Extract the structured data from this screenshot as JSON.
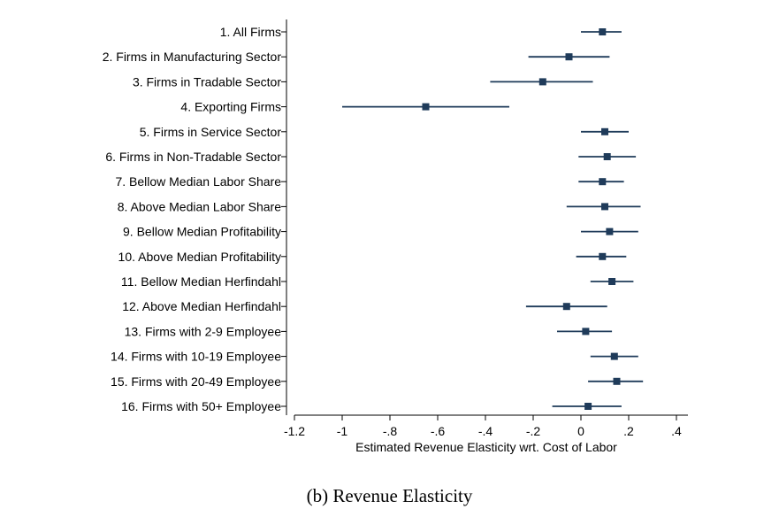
{
  "caption": "(b)  Revenue Elasticity",
  "chart_data": {
    "type": "scatter",
    "subtype": "coefficient-plot-horizontal-with-confidence-intervals",
    "xlabel": "Estimated Revenue Elasticity wrt. Cost of Labor",
    "ylabel": "",
    "xlim": [
      -1.2,
      0.4
    ],
    "xticks": [
      -1.2,
      -1.0,
      -0.8,
      -0.6,
      -0.4,
      -0.2,
      0.0,
      0.2,
      0.4
    ],
    "xtick_labels": [
      "-1.2",
      "-1",
      "-.8",
      "-.6",
      "-.4",
      "-.2",
      "0",
      ".2",
      ".4"
    ],
    "grid": false,
    "marker_color": "#1f3b5a",
    "categories": [
      "1. All Firms",
      "2. Firms in Manufacturing Sector",
      "3. Firms in Tradable Sector",
      "4. Exporting Firms",
      "5. Firms in Service Sector",
      "6. Firms in Non-Tradable Sector",
      "7. Bellow Median Labor Share",
      "8. Above Median Labor Share",
      "9. Bellow Median Profitability",
      "10. Above Median Profitability",
      "11. Bellow Median Herfindahl",
      "12. Above Median Herfindahl",
      "13. Firms with 2-9 Employee",
      "14. Firms with 10-19 Employee",
      "15. Firms with 20-49 Employee",
      "16. Firms with 50+ Employee"
    ],
    "estimates": [
      0.09,
      -0.05,
      -0.16,
      -0.65,
      0.1,
      0.11,
      0.09,
      0.1,
      0.12,
      0.09,
      0.13,
      -0.06,
      0.02,
      0.14,
      0.15,
      0.03
    ],
    "ci_low": [
      0.0,
      -0.22,
      -0.38,
      -1.0,
      0.0,
      -0.01,
      -0.01,
      -0.06,
      0.0,
      -0.02,
      0.04,
      -0.23,
      -0.1,
      0.04,
      0.03,
      -0.12
    ],
    "ci_high": [
      0.17,
      0.12,
      0.05,
      -0.3,
      0.2,
      0.23,
      0.18,
      0.25,
      0.24,
      0.19,
      0.22,
      0.11,
      0.13,
      0.24,
      0.26,
      0.17
    ]
  }
}
